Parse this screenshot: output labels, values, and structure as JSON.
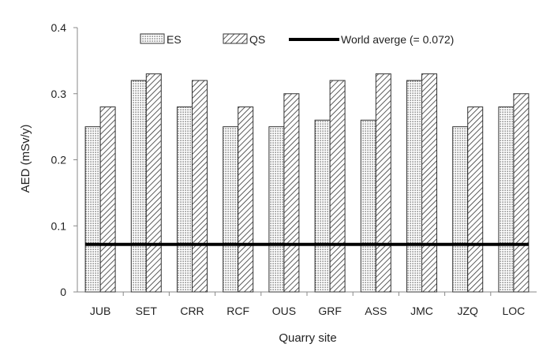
{
  "chart_data": {
    "type": "bar",
    "title": "",
    "xlabel": "Quarry site",
    "ylabel": "AED (mSv/y)",
    "ylim": [
      0,
      0.4
    ],
    "yticks": [
      "0",
      "0.1",
      "0.2",
      "0.3",
      "0.4"
    ],
    "ytick_values": [
      0,
      0.1,
      0.2,
      0.3,
      0.4
    ],
    "categories": [
      "JUB",
      "SET",
      "CRR",
      "RCF",
      "OUS",
      "GRF",
      "ASS",
      "JMC",
      "JZQ",
      "LOC"
    ],
    "series": [
      {
        "name": "ES",
        "pattern": "dotted",
        "values": [
          0.25,
          0.32,
          0.28,
          0.25,
          0.25,
          0.26,
          0.26,
          0.32,
          0.25,
          0.28
        ]
      },
      {
        "name": "QS",
        "pattern": "diagonal-hatch",
        "values": [
          0.28,
          0.33,
          0.32,
          0.28,
          0.3,
          0.32,
          0.33,
          0.33,
          0.28,
          0.3
        ]
      }
    ],
    "reference_line": {
      "label": "World averge (= 0.072)",
      "value": 0.072,
      "color": "#000000"
    },
    "legend": {
      "placement": "top"
    },
    "grid": false
  }
}
